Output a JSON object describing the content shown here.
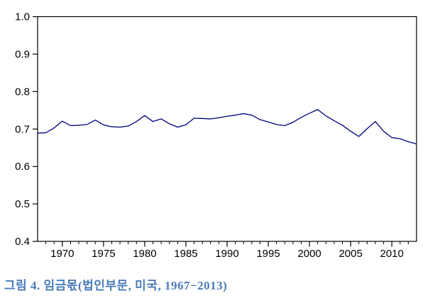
{
  "figure": {
    "caption": "그림 4. 임금몫(법인부문, 미국, 1967−2013)",
    "caption_color": "#4a7cb8"
  },
  "chart_data": {
    "type": "line",
    "title": "",
    "xlabel": "",
    "ylabel": "",
    "x_start": 1967,
    "x_end": 2013,
    "ylim": [
      0.4,
      1.0
    ],
    "y_ticks": [
      1.0,
      0.9,
      0.8,
      0.7,
      0.6,
      0.5,
      0.4
    ],
    "y_tick_labels": [
      "1.0",
      "0.9",
      "0.8",
      "0.7",
      "0.6",
      "0.5",
      "0.4"
    ],
    "x_major_ticks": [
      1970,
      1975,
      1980,
      1985,
      1990,
      1995,
      2000,
      2005,
      2010
    ],
    "x_major_tick_labels": [
      "1970",
      "1975",
      "1980",
      "1985",
      "1990",
      "1995",
      "2000",
      "2005",
      "2010"
    ],
    "x_minor_tick_interval": 1,
    "grid": false,
    "legend_position": "none",
    "frame": "box",
    "axis_color": "#000000",
    "series": [
      {
        "name": "임금몫(법인부문, 미국)",
        "color": "#000080",
        "x": [
          1967,
          1968,
          1969,
          1970,
          1971,
          1972,
          1973,
          1974,
          1975,
          1976,
          1977,
          1978,
          1979,
          1980,
          1981,
          1982,
          1983,
          1984,
          1985,
          1986,
          1987,
          1988,
          1989,
          1990,
          1991,
          1992,
          1993,
          1994,
          1995,
          1996,
          1997,
          1998,
          1999,
          2000,
          2001,
          2002,
          2003,
          2004,
          2005,
          2006,
          2007,
          2008,
          2009,
          2010,
          2011,
          2012,
          2013
        ],
        "values": [
          0.689,
          0.69,
          0.703,
          0.721,
          0.709,
          0.71,
          0.712,
          0.724,
          0.711,
          0.706,
          0.705,
          0.708,
          0.72,
          0.736,
          0.72,
          0.727,
          0.714,
          0.705,
          0.711,
          0.729,
          0.728,
          0.727,
          0.73,
          0.734,
          0.737,
          0.741,
          0.737,
          0.725,
          0.719,
          0.712,
          0.709,
          0.718,
          0.731,
          0.742,
          0.752,
          0.735,
          0.722,
          0.71,
          0.694,
          0.68,
          0.701,
          0.72,
          0.694,
          0.677,
          0.674,
          0.666,
          0.66
        ]
      }
    ]
  }
}
